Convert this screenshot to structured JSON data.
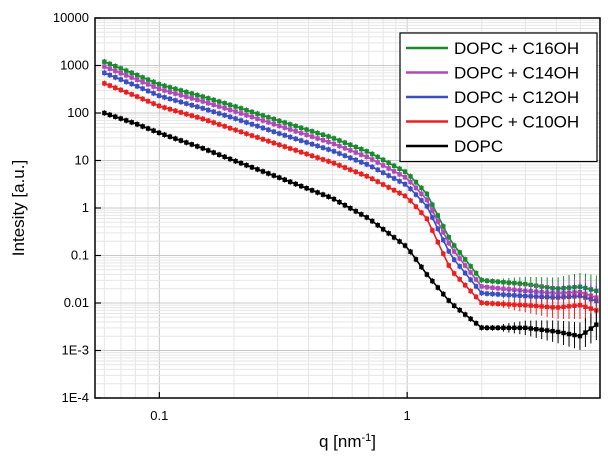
{
  "chart_data": {
    "type": "line",
    "xlabel": "q [nm",
    "xlabel_sup": "-1",
    "xlabel_end": "]",
    "ylabel": "Intesity [a.u.]",
    "xscale": "log",
    "yscale": "log",
    "xlim": [
      0.055,
      6.0
    ],
    "ylim": [
      0.0001,
      10000
    ],
    "x_ticks": [
      {
        "value": 0.1,
        "label": "0.1"
      },
      {
        "value": 1,
        "label": "1"
      }
    ],
    "y_ticks": [
      {
        "value": 10000,
        "label": "10000"
      },
      {
        "value": 1000,
        "label": "1000"
      },
      {
        "value": 100,
        "label": "100"
      },
      {
        "value": 10,
        "label": "10"
      },
      {
        "value": 1,
        "label": "1"
      },
      {
        "value": 0.1,
        "label": "0.1"
      },
      {
        "value": 0.01,
        "label": "0.01"
      },
      {
        "value": 0.001,
        "label": "1E-3"
      },
      {
        "value": 0.0001,
        "label": "1E-4"
      }
    ],
    "grid": true,
    "legend_position": "top-right",
    "series": [
      {
        "name": "DOPC + C16OH",
        "color": "#1a8a2e",
        "x": [
          0.06,
          0.08,
          0.1,
          0.15,
          0.2,
          0.3,
          0.5,
          0.7,
          1.0,
          1.2,
          1.5,
          2.0,
          3.0,
          4.0,
          5.0,
          5.8
        ],
        "y": [
          1200,
          650,
          400,
          220,
          140,
          70,
          30,
          15,
          5.5,
          2.0,
          0.2,
          0.03,
          0.025,
          0.02,
          0.022,
          0.018
        ]
      },
      {
        "name": "DOPC + C14OH",
        "color": "#b04ab8",
        "x": [
          0.06,
          0.08,
          0.1,
          0.15,
          0.2,
          0.3,
          0.5,
          0.7,
          1.0,
          1.2,
          1.5,
          2.0,
          3.0,
          4.0,
          5.0,
          5.8
        ],
        "y": [
          950,
          520,
          320,
          175,
          110,
          55,
          23,
          11.5,
          4.2,
          1.5,
          0.15,
          0.022,
          0.018,
          0.016,
          0.017,
          0.013
        ]
      },
      {
        "name": "DOPC + C12OH",
        "color": "#3a4fc0",
        "x": [
          0.06,
          0.08,
          0.1,
          0.15,
          0.2,
          0.3,
          0.5,
          0.7,
          1.0,
          1.2,
          1.5,
          2.0,
          3.0,
          4.0,
          5.0,
          5.8
        ],
        "y": [
          700,
          380,
          230,
          125,
          78,
          38,
          16,
          8.0,
          3.0,
          1.1,
          0.1,
          0.016,
          0.014,
          0.013,
          0.014,
          0.011
        ]
      },
      {
        "name": "DOPC + C10OH",
        "color": "#e8201f",
        "x": [
          0.06,
          0.08,
          0.1,
          0.15,
          0.2,
          0.3,
          0.5,
          0.7,
          1.0,
          1.2,
          1.5,
          2.0,
          3.0,
          4.0,
          5.0,
          5.8
        ],
        "y": [
          420,
          230,
          140,
          75,
          45,
          22,
          9.0,
          4.5,
          1.7,
          0.6,
          0.05,
          0.01,
          0.009,
          0.008,
          0.009,
          0.007
        ]
      },
      {
        "name": "DOPC",
        "color": "#000000",
        "x": [
          0.06,
          0.08,
          0.1,
          0.15,
          0.2,
          0.3,
          0.5,
          0.7,
          1.0,
          1.2,
          1.5,
          2.0,
          2.5,
          3.0,
          4.0,
          5.0,
          5.8
        ],
        "y": [
          100,
          60,
          38,
          18,
          10,
          4.5,
          1.6,
          0.6,
          0.15,
          0.04,
          0.01,
          0.003,
          0.003,
          0.003,
          0.0025,
          0.002,
          0.0035
        ]
      }
    ]
  }
}
